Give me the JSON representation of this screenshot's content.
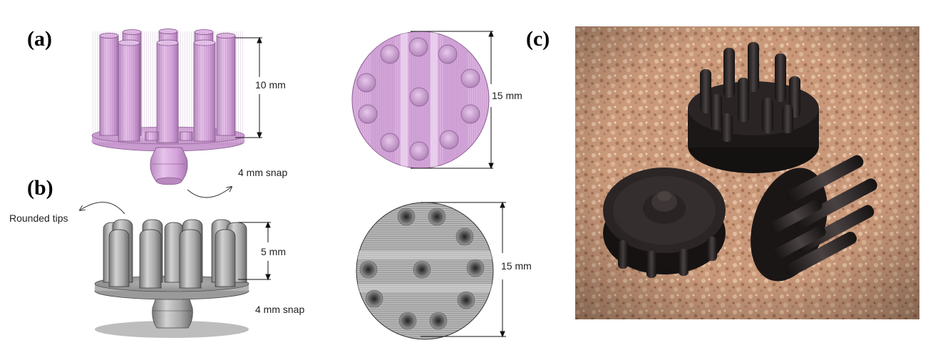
{
  "labels": {
    "a": "(a)",
    "b": "(b)",
    "c": "(c)"
  },
  "dimensions": {
    "a_height": "10 mm",
    "a_snap": "4 mm snap",
    "a_top_diameter": "15 mm",
    "b_tips": "Rounded tips",
    "b_height": "5 mm",
    "b_snap": "4 mm snap",
    "b_top_diameter": "15 mm"
  },
  "colors": {
    "model_a": "#d7a8dc",
    "model_a_dark": "#b07ab8",
    "model_b": "#b9b9b9",
    "model_b_dark": "#6e6e6e",
    "cork": "#c89878",
    "print": "#1e1a1a"
  }
}
